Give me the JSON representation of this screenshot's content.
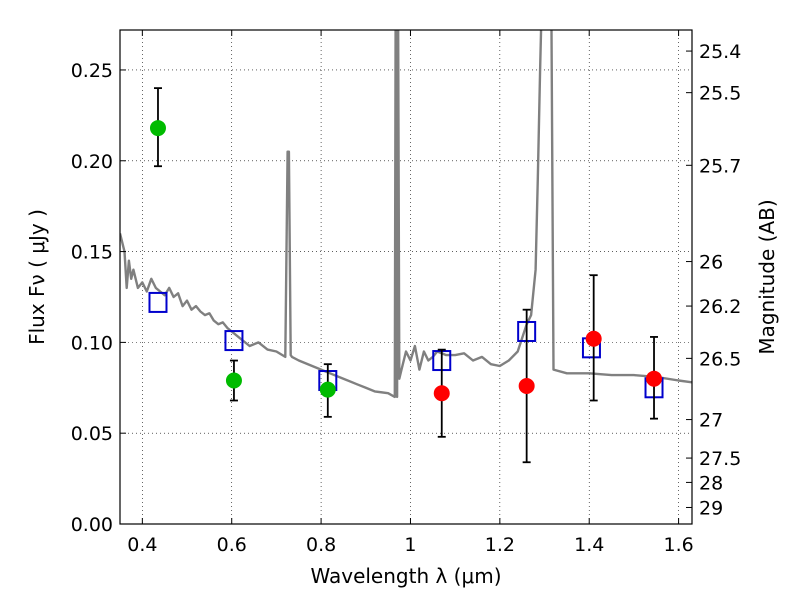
{
  "chart_data": {
    "type": "scatter",
    "title": "",
    "xlabel": "Wavelength  λ (μm)",
    "ylabel": "Flux  Fν  ( μJy )",
    "y2label": "Magnitude (AB)",
    "xlim": [
      0.35,
      1.63
    ],
    "ylim": [
      0.0,
      0.272
    ],
    "grid": true,
    "x_ticks": [
      0.4,
      0.6,
      0.8,
      1.0,
      1.2,
      1.4,
      1.6
    ],
    "x_tick_labels": [
      "0.4",
      "0.6",
      "0.8",
      "1",
      "1.2",
      "1.4",
      "1.6"
    ],
    "y_ticks": [
      0.0,
      0.05,
      0.1,
      0.15,
      0.2,
      0.25
    ],
    "y_tick_labels": [
      "0.00",
      "0.05",
      "0.10",
      "0.15",
      "0.20",
      "0.25"
    ],
    "y2_ticks": [
      {
        "label": "25.4",
        "flux": 0.2604
      },
      {
        "label": "25.5",
        "flux": 0.2375
      },
      {
        "label": "25.7",
        "flux": 0.1975
      },
      {
        "label": "26",
        "flux": 0.1445
      },
      {
        "label": "26.2",
        "flux": 0.12
      },
      {
        "label": "26.5",
        "flux": 0.0912
      },
      {
        "label": "27",
        "flux": 0.0575
      },
      {
        "label": "27.5",
        "flux": 0.0363
      },
      {
        "label": "28",
        "flux": 0.0229
      },
      {
        "label": "29",
        "flux": 0.0091
      }
    ],
    "series": [
      {
        "kind": "line",
        "color": "#808080",
        "x": [
          0.35,
          0.36,
          0.365,
          0.37,
          0.375,
          0.38,
          0.39,
          0.4,
          0.41,
          0.42,
          0.43,
          0.44,
          0.45,
          0.46,
          0.47,
          0.48,
          0.49,
          0.5,
          0.51,
          0.52,
          0.53,
          0.54,
          0.55,
          0.56,
          0.57,
          0.58,
          0.59,
          0.6,
          0.62,
          0.64,
          0.66,
          0.68,
          0.7,
          0.72,
          0.725,
          0.728,
          0.732,
          0.735,
          0.75,
          0.78,
          0.8,
          0.82,
          0.85,
          0.88,
          0.9,
          0.92,
          0.95,
          0.965,
          0.967,
          0.968,
          0.97,
          0.972,
          0.975,
          0.98,
          0.99,
          1.0,
          1.01,
          1.02,
          1.03,
          1.04,
          1.05,
          1.06,
          1.08,
          1.1,
          1.12,
          1.14,
          1.16,
          1.18,
          1.2,
          1.22,
          1.24,
          1.26,
          1.27,
          1.28,
          1.285,
          1.29,
          1.295,
          1.3,
          1.31,
          1.315,
          1.32,
          1.35,
          1.4,
          1.45,
          1.5,
          1.55,
          1.6,
          1.63
        ],
        "y": [
          0.16,
          0.15,
          0.13,
          0.145,
          0.135,
          0.14,
          0.13,
          0.133,
          0.128,
          0.135,
          0.13,
          0.128,
          0.126,
          0.13,
          0.125,
          0.127,
          0.12,
          0.123,
          0.118,
          0.12,
          0.117,
          0.115,
          0.116,
          0.112,
          0.11,
          0.111,
          0.108,
          0.106,
          0.102,
          0.098,
          0.1,
          0.096,
          0.095,
          0.092,
          0.205,
          0.205,
          0.093,
          0.092,
          0.09,
          0.087,
          0.085,
          0.083,
          0.08,
          0.077,
          0.075,
          0.073,
          0.072,
          0.07,
          0.3,
          0.3,
          0.07,
          0.3,
          0.08,
          0.085,
          0.095,
          0.09,
          0.098,
          0.085,
          0.095,
          0.09,
          0.092,
          0.095,
          0.093,
          0.093,
          0.094,
          0.09,
          0.092,
          0.088,
          0.087,
          0.09,
          0.095,
          0.11,
          0.115,
          0.14,
          0.19,
          0.25,
          0.3,
          0.3,
          0.3,
          0.3,
          0.085,
          0.083,
          0.083,
          0.082,
          0.082,
          0.081,
          0.079,
          0.078
        ]
      },
      {
        "kind": "scatter",
        "marker": "open-square",
        "color": "#0000cc",
        "x": [
          0.435,
          0.605,
          0.815,
          1.07,
          1.26,
          1.405,
          1.545
        ],
        "y": [
          0.122,
          0.101,
          0.079,
          0.09,
          0.106,
          0.097,
          0.075
        ]
      },
      {
        "kind": "scatter",
        "marker": "filled-circle",
        "color": "#00bb00",
        "x": [
          0.435,
          0.605,
          0.815
        ],
        "y": [
          0.218,
          0.079,
          0.074
        ],
        "err_low": [
          0.197,
          0.068,
          0.059
        ],
        "err_high": [
          0.24,
          0.09,
          0.088
        ]
      },
      {
        "kind": "scatter",
        "marker": "filled-circle",
        "color": "#ff0000",
        "x": [
          1.07,
          1.26,
          1.41,
          1.545
        ],
        "y": [
          0.072,
          0.076,
          0.102,
          0.08
        ],
        "err_low": [
          0.048,
          0.034,
          0.068,
          0.058
        ],
        "err_high": [
          0.096,
          0.118,
          0.137,
          0.103
        ]
      }
    ]
  }
}
